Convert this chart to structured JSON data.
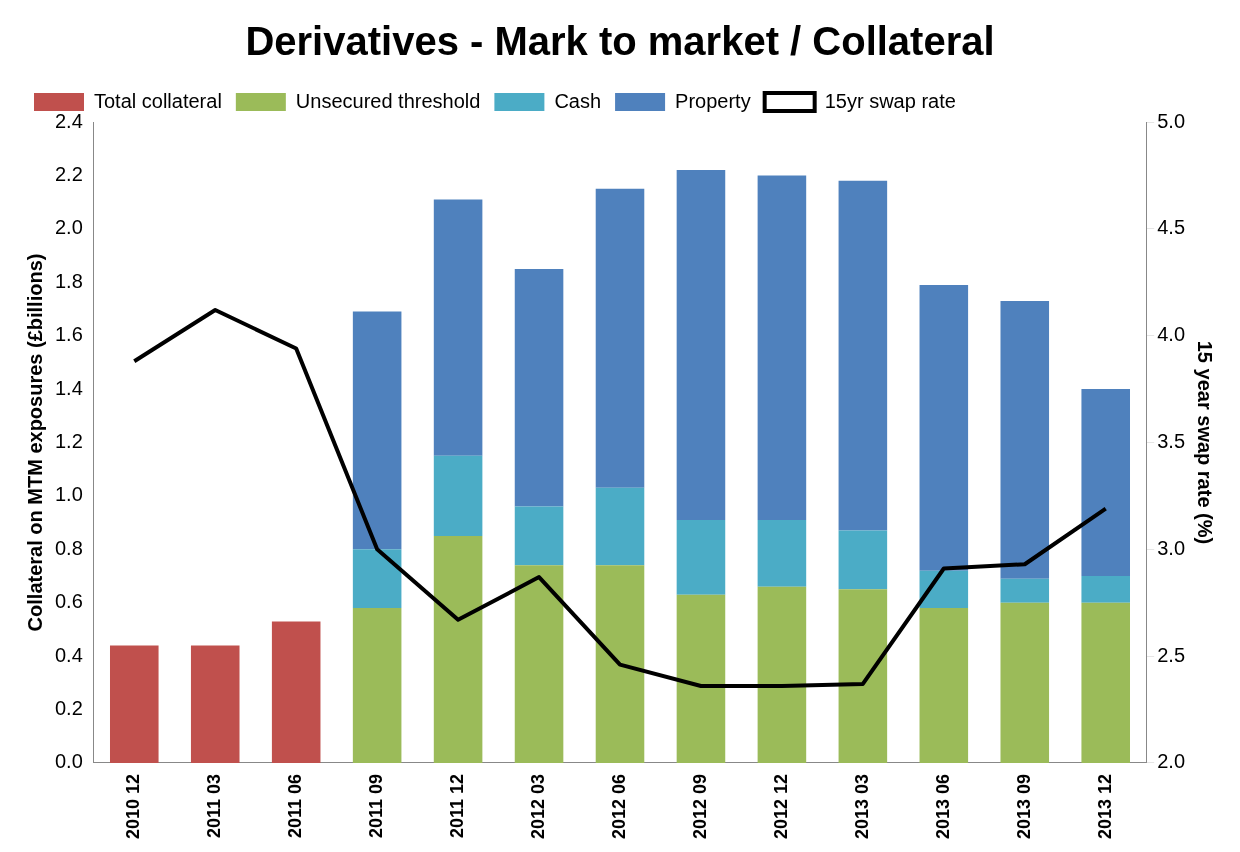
{
  "chart_data": {
    "type": "bar",
    "title": "Derivatives - Mark to market / Collateral",
    "ylabel": "Collateral on MTM exposures (£billions)",
    "y2label": "15 year swap rate (%)",
    "categories": [
      "2010 12",
      "2011 03",
      "2011 06",
      "2011 09",
      "2011 12",
      "2012 03",
      "2012 06",
      "2012 09",
      "2012 12",
      "2013 03",
      "2013 06",
      "2013 09",
      "2013 12"
    ],
    "stacked": true,
    "legend": "top",
    "grid": false,
    "ylim": [
      0,
      2.4
    ],
    "yticks": [
      {
        "value": 0,
        "label": "0.0"
      },
      {
        "value": 0.2,
        "label": "0.2"
      },
      {
        "value": 0.4,
        "label": "0.4"
      },
      {
        "value": 0.6,
        "label": "0.6"
      },
      {
        "value": 0.8,
        "label": "0.8"
      },
      {
        "value": 1,
        "label": "1.0"
      },
      {
        "value": 1.2,
        "label": "1.2"
      },
      {
        "value": 1.4,
        "label": "1.4"
      },
      {
        "value": 1.6,
        "label": "1.6"
      },
      {
        "value": 1.8,
        "label": "1.8"
      },
      {
        "value": 2,
        "label": "2.0"
      },
      {
        "value": 2.2,
        "label": "2.2"
      },
      {
        "value": 2.4,
        "label": "2.4"
      }
    ],
    "y2lim": [
      2,
      5
    ],
    "y2ticks": [
      {
        "value": 2,
        "label": "2.0"
      },
      {
        "value": 2.5,
        "label": "2.5"
      },
      {
        "value": 3,
        "label": "3.0"
      },
      {
        "value": 3.5,
        "label": "3.5"
      },
      {
        "value": 4,
        "label": "4.0"
      },
      {
        "value": 4.5,
        "label": "4.5"
      },
      {
        "value": 5,
        "label": "5.0"
      }
    ],
    "series": [
      {
        "name": "Total collateral",
        "color": "#c0504d",
        "values": [
          0.44,
          0.44,
          0.53,
          null,
          null,
          null,
          null,
          null,
          null,
          null,
          null,
          null,
          null
        ]
      },
      {
        "name": "Unsecured threshold",
        "color": "#9bbb59",
        "values": [
          null,
          null,
          null,
          0.58,
          0.85,
          0.74,
          0.74,
          0.63,
          0.66,
          0.65,
          0.58,
          0.6,
          0.6
        ]
      },
      {
        "name": "Cash",
        "color": "#4bacc6",
        "values": [
          null,
          null,
          null,
          0.22,
          0.3,
          0.22,
          0.29,
          0.28,
          0.25,
          0.22,
          0.14,
          0.09,
          0.1
        ]
      },
      {
        "name": "Property",
        "color": "#4f81bd",
        "values": [
          null,
          null,
          null,
          0.89,
          0.96,
          0.89,
          1.12,
          1.31,
          1.29,
          1.31,
          1.07,
          1.04,
          0.7
        ]
      },
      {
        "name": "15yr swap rate",
        "type": "line",
        "axis": "y2",
        "color": "#000000",
        "marker": "none",
        "line_style": "solid",
        "values": [
          3.88,
          4.12,
          3.94,
          3.0,
          2.67,
          2.87,
          2.46,
          2.36,
          2.36,
          2.37,
          2.91,
          2.93,
          3.19
        ]
      }
    ]
  }
}
